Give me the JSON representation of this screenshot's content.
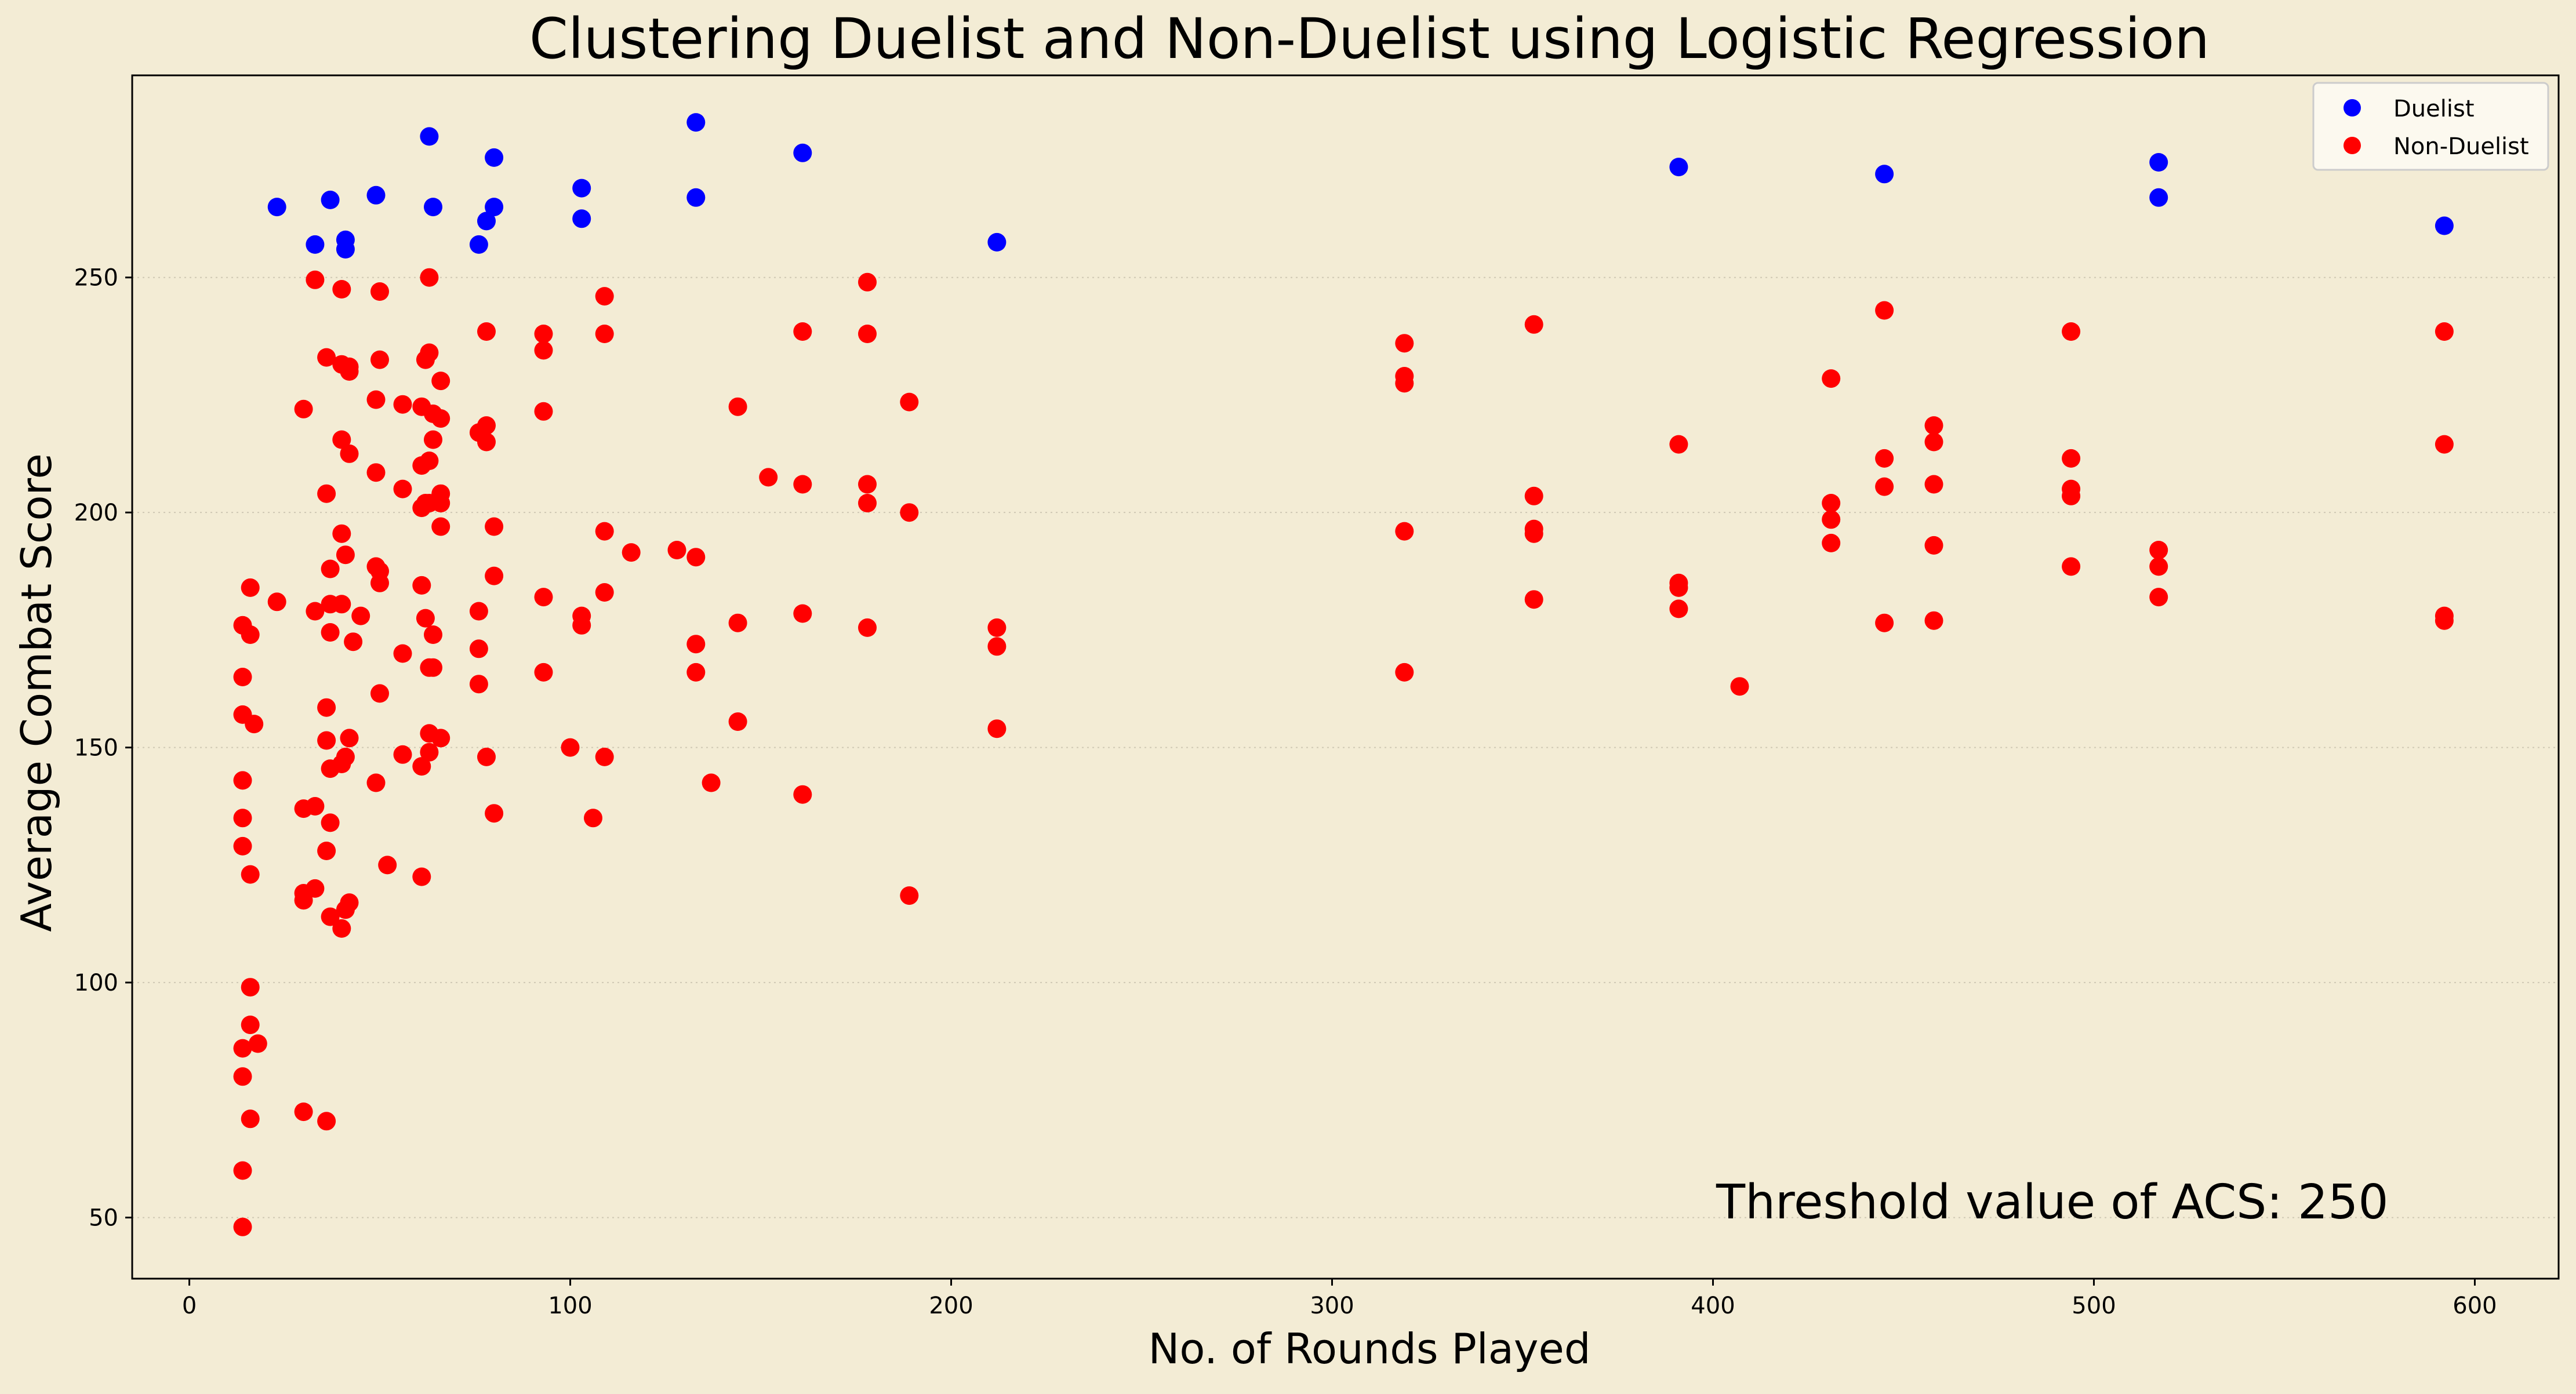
{
  "colors": {
    "background": "#f3ecd5",
    "duelist": "#0000ff",
    "non_duelist": "#ff0000",
    "grid": "#cfc8b4",
    "axis": "#000000"
  },
  "chart_data": {
    "type": "scatter",
    "title": "Clustering Duelist and Non-Duelist using Logistic Regression",
    "xlabel": "No. of Rounds Played",
    "ylabel": "Average Combat Score",
    "xlim": [
      -15,
      622
    ],
    "ylim": [
      37,
      293
    ],
    "xticks": [
      0,
      100,
      200,
      300,
      400,
      500,
      600
    ],
    "yticks": [
      50,
      100,
      150,
      200,
      250
    ],
    "grid": "horizontal dotted",
    "legend_position": "top-right",
    "annotation": "Threshold value of ACS: 250",
    "series": [
      {
        "name": "Duelist",
        "color": "#0000ff",
        "points": [
          [
            23,
            265
          ],
          [
            33,
            257
          ],
          [
            37,
            266.5
          ],
          [
            41,
            258
          ],
          [
            41,
            256
          ],
          [
            49,
            267.5
          ],
          [
            63,
            280
          ],
          [
            64,
            265
          ],
          [
            76,
            257
          ],
          [
            78,
            262
          ],
          [
            80,
            265
          ],
          [
            80,
            275.5
          ],
          [
            103,
            269
          ],
          [
            103,
            262.5
          ],
          [
            133,
            283
          ],
          [
            133,
            267
          ],
          [
            161,
            276.5
          ],
          [
            212,
            257.5
          ],
          [
            391,
            273.5
          ],
          [
            445,
            272
          ],
          [
            517,
            274.5
          ],
          [
            517,
            267
          ],
          [
            592,
            261
          ]
        ]
      },
      {
        "name": "Non-Duelist",
        "color": "#ff0000",
        "points": [
          [
            14,
            176
          ],
          [
            14,
            165
          ],
          [
            14,
            157
          ],
          [
            14,
            143
          ],
          [
            14,
            135
          ],
          [
            14,
            129
          ],
          [
            14,
            86
          ],
          [
            14,
            80
          ],
          [
            14,
            60
          ],
          [
            14,
            48
          ],
          [
            16,
            184
          ],
          [
            16,
            174
          ],
          [
            16,
            123
          ],
          [
            16,
            99
          ],
          [
            16,
            91
          ],
          [
            16,
            71
          ],
          [
            17,
            155
          ],
          [
            18,
            87
          ],
          [
            23,
            181
          ],
          [
            30,
            222
          ],
          [
            30,
            137
          ],
          [
            30,
            119
          ],
          [
            30,
            117.5
          ],
          [
            30,
            72.5
          ],
          [
            33,
            249.5
          ],
          [
            33,
            179
          ],
          [
            33,
            137.5
          ],
          [
            33,
            120
          ],
          [
            36,
            233
          ],
          [
            36,
            204
          ],
          [
            36,
            158.5
          ],
          [
            36,
            151.5
          ],
          [
            36,
            128
          ],
          [
            36,
            70.5
          ],
          [
            37,
            188
          ],
          [
            37,
            180.5
          ],
          [
            37,
            174.5
          ],
          [
            37,
            145.5
          ],
          [
            37,
            134
          ],
          [
            37,
            114
          ],
          [
            40,
            247.5
          ],
          [
            40,
            231.5
          ],
          [
            40,
            215.5
          ],
          [
            40,
            195.5
          ],
          [
            40,
            180.5
          ],
          [
            40,
            146.5
          ],
          [
            40,
            111.5
          ],
          [
            41,
            191
          ],
          [
            41,
            148
          ],
          [
            41,
            115.5
          ],
          [
            42,
            231
          ],
          [
            42,
            230
          ],
          [
            42,
            212.5
          ],
          [
            42,
            152
          ],
          [
            42,
            117
          ],
          [
            43,
            172.5
          ],
          [
            45,
            178
          ],
          [
            49,
            224
          ],
          [
            49,
            208.5
          ],
          [
            49,
            188.5
          ],
          [
            49,
            142.5
          ],
          [
            50,
            247
          ],
          [
            50,
            232.5
          ],
          [
            50,
            187.5
          ],
          [
            50,
            185
          ],
          [
            50,
            161.5
          ],
          [
            52,
            125
          ],
          [
            56,
            223
          ],
          [
            56,
            205
          ],
          [
            56,
            170
          ],
          [
            56,
            148.5
          ],
          [
            61,
            222.5
          ],
          [
            61,
            210
          ],
          [
            61,
            201
          ],
          [
            61,
            184.5
          ],
          [
            61,
            146
          ],
          [
            61,
            122.5
          ],
          [
            62,
            232.5
          ],
          [
            62,
            202
          ],
          [
            62,
            177.5
          ],
          [
            63,
            250
          ],
          [
            63,
            234
          ],
          [
            63,
            211
          ],
          [
            63,
            202
          ],
          [
            63,
            167
          ],
          [
            63,
            153
          ],
          [
            63,
            149
          ],
          [
            64,
            221
          ],
          [
            64,
            215.5
          ],
          [
            64,
            174
          ],
          [
            64,
            167
          ],
          [
            66,
            228
          ],
          [
            66,
            220
          ],
          [
            66,
            204
          ],
          [
            66,
            202
          ],
          [
            66,
            197
          ],
          [
            66,
            152
          ],
          [
            76,
            217
          ],
          [
            76,
            179
          ],
          [
            76,
            171
          ],
          [
            76,
            163.5
          ],
          [
            78,
            238.5
          ],
          [
            78,
            218.5
          ],
          [
            78,
            215
          ],
          [
            78,
            148
          ],
          [
            80,
            197
          ],
          [
            80,
            186.5
          ],
          [
            80,
            136
          ],
          [
            93,
            238
          ],
          [
            93,
            234.5
          ],
          [
            93,
            221.5
          ],
          [
            93,
            182
          ],
          [
            93,
            166
          ],
          [
            100,
            150
          ],
          [
            103,
            178
          ],
          [
            103,
            176
          ],
          [
            106,
            135
          ],
          [
            109,
            246
          ],
          [
            109,
            238
          ],
          [
            109,
            196
          ],
          [
            109,
            183
          ],
          [
            109,
            148
          ],
          [
            116,
            191.5
          ],
          [
            128,
            192
          ],
          [
            133,
            190.5
          ],
          [
            133,
            172
          ],
          [
            133,
            166
          ],
          [
            137,
            142.5
          ],
          [
            144,
            222.5
          ],
          [
            144,
            176.5
          ],
          [
            144,
            155.5
          ],
          [
            152,
            207.5
          ],
          [
            161,
            238.5
          ],
          [
            161,
            206
          ],
          [
            161,
            178.5
          ],
          [
            161,
            140
          ],
          [
            178,
            249
          ],
          [
            178,
            238
          ],
          [
            178,
            206
          ],
          [
            178,
            202
          ],
          [
            178,
            175.5
          ],
          [
            189,
            223.5
          ],
          [
            189,
            200
          ],
          [
            189,
            118.5
          ],
          [
            212,
            175.5
          ],
          [
            212,
            171.5
          ],
          [
            212,
            154
          ],
          [
            319,
            236
          ],
          [
            319,
            229
          ],
          [
            319,
            227.5
          ],
          [
            319,
            196
          ],
          [
            319,
            166
          ],
          [
            353,
            240
          ],
          [
            353,
            203.5
          ],
          [
            353,
            196.5
          ],
          [
            353,
            195.5
          ],
          [
            353,
            181.5
          ],
          [
            391,
            214.5
          ],
          [
            391,
            185
          ],
          [
            391,
            184
          ],
          [
            391,
            179.5
          ],
          [
            407,
            163
          ],
          [
            431,
            228.5
          ],
          [
            431,
            202
          ],
          [
            431,
            198.5
          ],
          [
            431,
            193.5
          ],
          [
            445,
            243
          ],
          [
            445,
            211.5
          ],
          [
            445,
            205.5
          ],
          [
            445,
            176.5
          ],
          [
            458,
            218.5
          ],
          [
            458,
            215
          ],
          [
            458,
            206
          ],
          [
            458,
            193
          ],
          [
            458,
            177
          ],
          [
            494,
            238.5
          ],
          [
            494,
            211.5
          ],
          [
            494,
            205
          ],
          [
            494,
            203.5
          ],
          [
            494,
            188.5
          ],
          [
            517,
            192
          ],
          [
            517,
            188.5
          ],
          [
            517,
            182
          ],
          [
            592,
            238.5
          ],
          [
            592,
            214.5
          ],
          [
            592,
            178
          ],
          [
            592,
            177
          ]
        ]
      }
    ]
  }
}
